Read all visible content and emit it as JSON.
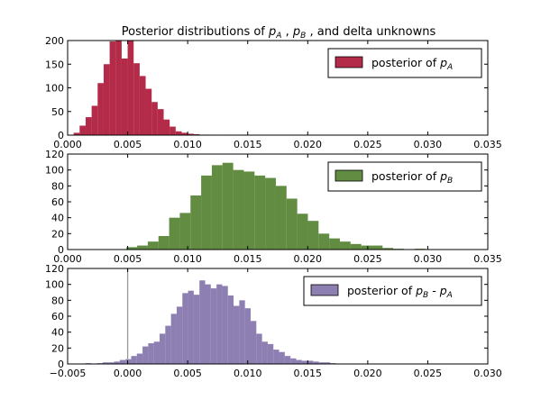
{
  "chart_data": [
    {
      "type": "bar",
      "title": "Posterior distributions of p_A , p_B , and delta unknowns",
      "title_parts": {
        "prefix": "Posterior distributions of ",
        "var_a": "p",
        "sub_a": "A",
        "sep1": " , ",
        "var_b": "p",
        "sub_b": "B",
        "suffix": " , and delta unknowns"
      },
      "legend": {
        "text": "posterior of ",
        "var": "p",
        "sub": "A",
        "placement": "upper right"
      },
      "color": "#A60628",
      "bar_alpha": 0.85,
      "xlim": [
        0.0,
        0.035
      ],
      "ylim": [
        0,
        200
      ],
      "xticks": [
        0.0,
        0.005,
        0.01,
        0.015,
        0.02,
        0.025,
        0.03,
        0.035
      ],
      "xtick_labels": [
        "0.000",
        "0.005",
        "0.010",
        "0.015",
        "0.020",
        "0.025",
        "0.030",
        "0.035"
      ],
      "yticks": [
        0,
        50,
        100,
        150,
        200
      ],
      "ytick_labels": [
        "0",
        "50",
        "100",
        "150",
        "200"
      ],
      "bin_start": 0.0005,
      "bin_width": 0.0005,
      "values": [
        5,
        20,
        38,
        62,
        110,
        150,
        198,
        200,
        162,
        200,
        152,
        125,
        98,
        70,
        55,
        33,
        18,
        8,
        5,
        3,
        2,
        1,
        1,
        0,
        0,
        1,
        0,
        0,
        1
      ]
    },
    {
      "type": "bar",
      "legend": {
        "text": "posterior of ",
        "var": "p",
        "sub": "B",
        "placement": "upper right"
      },
      "color": "#467821",
      "bar_alpha": 0.85,
      "xlim": [
        0.0,
        0.035
      ],
      "ylim": [
        0,
        120
      ],
      "xticks": [
        0.0,
        0.005,
        0.01,
        0.015,
        0.02,
        0.025,
        0.03,
        0.035
      ],
      "xtick_labels": [
        "0.000",
        "0.005",
        "0.010",
        "0.015",
        "0.020",
        "0.025",
        "0.030",
        "0.035"
      ],
      "yticks": [
        0,
        20,
        40,
        60,
        80,
        100,
        120
      ],
      "ytick_labels": [
        "0",
        "20",
        "40",
        "60",
        "80",
        "100",
        "120"
      ],
      "bin_start": 0.0049,
      "bin_width": 0.000889,
      "values": [
        3,
        5,
        10,
        17,
        40,
        46,
        68,
        93,
        106,
        109,
        100,
        98,
        93,
        90,
        80,
        64,
        45,
        36,
        20,
        14,
        10,
        7,
        5,
        5,
        2,
        1,
        0,
        1
      ]
    },
    {
      "type": "bar",
      "legend": {
        "text": "posterior of ",
        "var": "p",
        "sub": "B",
        "sep": " - ",
        "var2": "p",
        "sub2": "A",
        "placement": "upper right"
      },
      "color": "#7A68A6",
      "bar_alpha": 0.85,
      "xlim": [
        -0.005,
        0.03
      ],
      "ylim": [
        0,
        120
      ],
      "xticks": [
        -0.005,
        0.0,
        0.005,
        0.01,
        0.015,
        0.02,
        0.025,
        0.03
      ],
      "xtick_labels": [
        "−0.005",
        "0.000",
        "0.005",
        "0.010",
        "0.015",
        "0.020",
        "0.025",
        "0.030"
      ],
      "yticks": [
        0,
        20,
        40,
        60,
        80,
        100,
        120
      ],
      "ytick_labels": [
        "0",
        "20",
        "40",
        "60",
        "80",
        "100",
        "120"
      ],
      "vline_x": 0.0,
      "bin_start": -0.0035,
      "bin_width": 0.000474,
      "values": [
        1,
        0,
        1,
        2,
        2,
        3,
        5,
        6,
        10,
        13,
        22,
        26,
        28,
        38,
        48,
        63,
        72,
        89,
        92,
        87,
        105,
        100,
        95,
        100,
        98,
        86,
        73,
        80,
        70,
        54,
        38,
        28,
        25,
        18,
        15,
        10,
        7,
        5,
        4,
        4,
        3,
        2,
        2,
        1
      ]
    }
  ]
}
